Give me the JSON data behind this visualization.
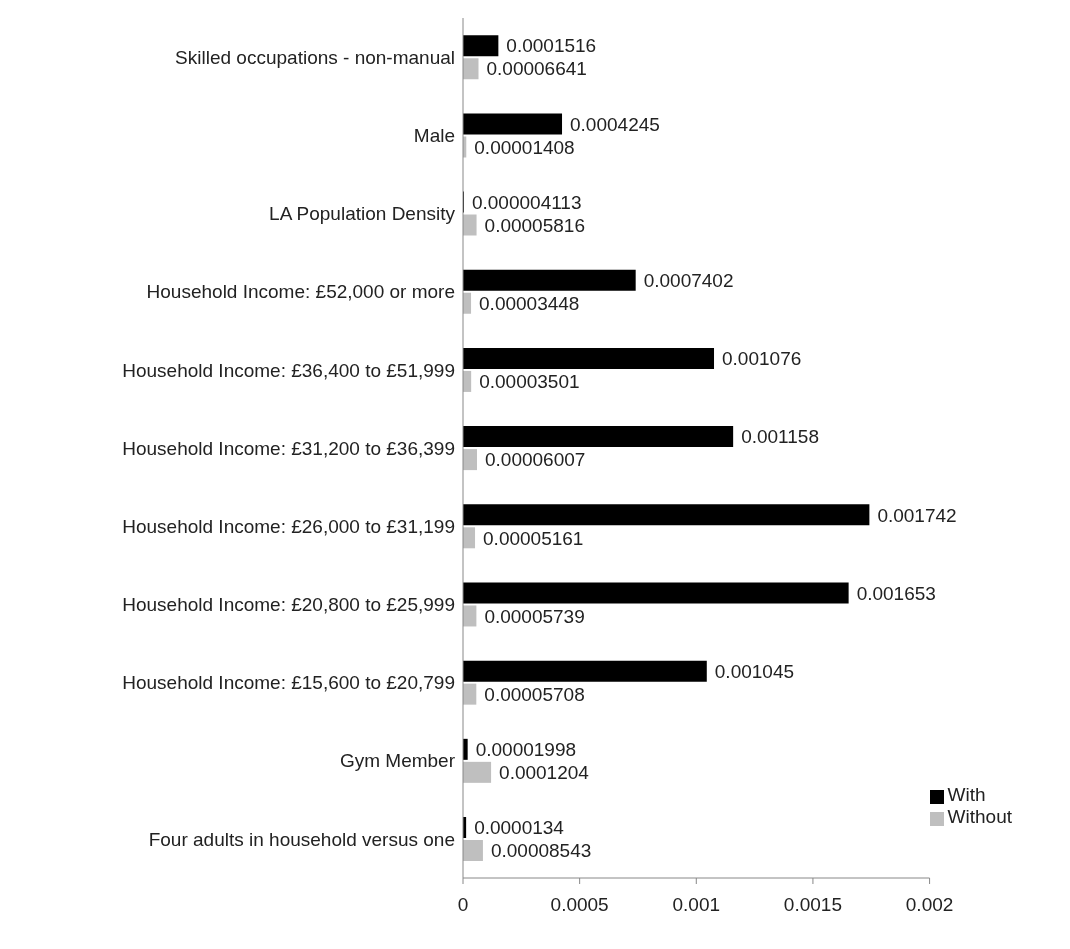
{
  "chart_data": {
    "type": "bar",
    "orientation": "horizontal",
    "categories": [
      "Skilled occupations - non-manual",
      "Male",
      "LA Population Density",
      "Household Income: £52,000 or more",
      "Household Income: £36,400 to £51,999",
      "Household Income: £31,200 to £36,399",
      "Household Income: £26,000 to £31,199",
      "Household Income: £20,800 to £25,999",
      "Household Income: £15,600 to £20,799",
      "Gym Member",
      "Four adults in household versus one"
    ],
    "series": [
      {
        "name": "With",
        "color": "#000000",
        "values": [
          0.0001516,
          0.0004245,
          4.113e-06,
          0.0007402,
          0.001076,
          0.001158,
          0.001742,
          0.001653,
          0.001045,
          1.998e-05,
          1.34e-05
        ],
        "value_labels": [
          "0.0001516",
          "0.0004245",
          "0.000004113",
          "0.0007402",
          "0.001076",
          "0.001158",
          "0.001742",
          "0.001653",
          "0.001045",
          "0.00001998",
          "0.0000134"
        ]
      },
      {
        "name": "Without",
        "color": "#bfbfbf",
        "values": [
          6.641e-05,
          1.408e-05,
          5.816e-05,
          3.448e-05,
          3.501e-05,
          6.007e-05,
          5.161e-05,
          5.739e-05,
          5.708e-05,
          0.0001204,
          8.543e-05
        ],
        "value_labels": [
          "0.00006641",
          "0.00001408",
          "0.00005816",
          "0.00003448",
          "0.00003501",
          "0.00006007",
          "0.00005161",
          "0.00005739",
          "0.00005708",
          "0.0001204",
          "0.00008543"
        ]
      }
    ],
    "xlim": [
      0,
      0.002
    ],
    "xticks": [
      0,
      0.0005,
      0.001,
      0.0015,
      0.002
    ],
    "grid": false,
    "legend": "bottom right"
  }
}
